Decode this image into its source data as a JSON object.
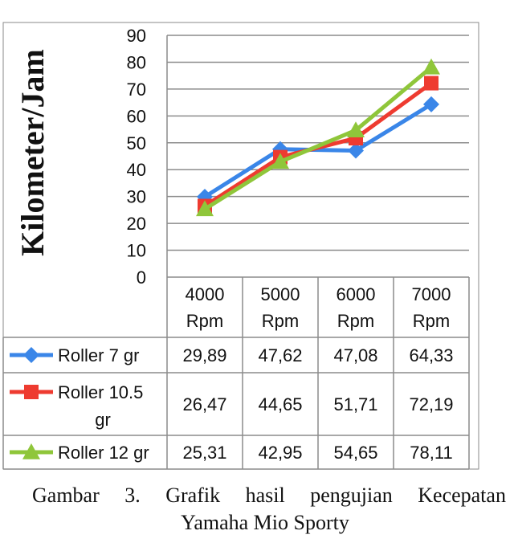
{
  "chart_data": {
    "type": "line",
    "ylabel": "Kilometer/Jam",
    "ylim": [
      0,
      90
    ],
    "yticks": [
      "0",
      "10",
      "20",
      "30",
      "40",
      "50",
      "60",
      "70",
      "80",
      "90"
    ],
    "categories": [
      "4000 Rpm",
      "5000 Rpm",
      "6000 Rpm",
      "7000 Rpm"
    ],
    "category_lines": [
      [
        "4000",
        "Rpm"
      ],
      [
        "5000",
        "Rpm"
      ],
      [
        "6000",
        "Rpm"
      ],
      [
        "7000",
        "Rpm"
      ]
    ],
    "grid": true,
    "legend": "data-table",
    "series": [
      {
        "name": "Roller 7 gr",
        "name_lines": [
          "Roller 7 gr"
        ],
        "values": [
          29.89,
          47.62,
          47.08,
          64.33
        ],
        "labels": [
          "29,89",
          "47,62",
          "47,08",
          "64,33"
        ],
        "color": "#3a86e8",
        "marker": "diamond"
      },
      {
        "name": "Roller 10.5 gr",
        "name_lines": [
          "Roller 10.5",
          "gr"
        ],
        "values": [
          26.47,
          44.65,
          51.71,
          72.19
        ],
        "labels": [
          "26,47",
          "44,65",
          "51,71",
          "72,19"
        ],
        "color": "#ee3b30",
        "marker": "square"
      },
      {
        "name": "Roller 12 gr",
        "name_lines": [
          "Roller 12 gr"
        ],
        "values": [
          25.31,
          42.95,
          54.65,
          78.11
        ],
        "labels": [
          "25,31",
          "42,95",
          "54,65",
          "78,11"
        ],
        "color": "#8fc63a",
        "marker": "triangle"
      }
    ]
  },
  "caption": {
    "words": [
      "Gambar",
      "3.",
      "Grafik",
      "hasil",
      "pengujian",
      "Kecepatan"
    ],
    "line2": "Yamaha Mio Sporty"
  }
}
